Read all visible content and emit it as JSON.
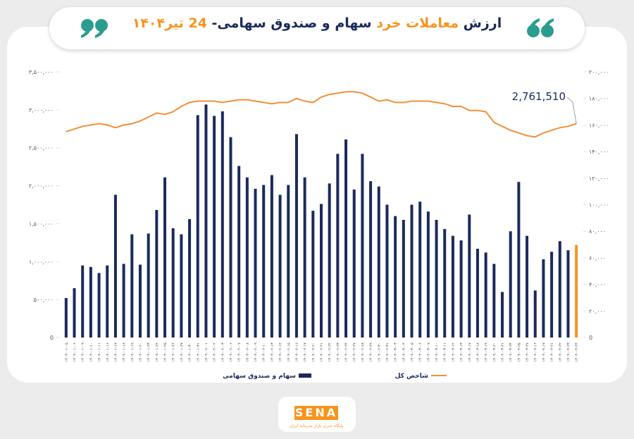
{
  "title_parts": [
    {
      "text": "ارزش ",
      "color": "#1b2a5c"
    },
    {
      "text": "معاملات خرد",
      "color": "#f7941d"
    },
    {
      "text": " سهام و صندوق سهامی- ",
      "color": "#1b2a5c"
    },
    {
      "text": "24 تیر۱۴۰۴",
      "color": "#f7941d"
    }
  ],
  "chart_data": {
    "type": "bar_line",
    "categories": [
      "۱۴۰۴-۰۱-۰۵",
      "۱۴۰۴-۰۱-۰۶",
      "۱۴۰۴-۰۱-۰۹",
      "۱۴۰۴-۰۱-۱۰",
      "۱۴۰۴-۰۱-۱۱",
      "۱۴۰۴-۰۱-۱۶",
      "۱۴۰۴-۰۱-۱۷",
      "۱۴۰۴-۰۱-۱۸",
      "۱۴۰۴-۰۱-۱۹",
      "۱۴۰۴-۰۱-۲۰",
      "۱۴۰۴-۰۱-۲۳",
      "۱۴۰۴-۰۱-۲۴",
      "۱۴۰۴-۰۱-۲۵",
      "۱۴۰۴-۰۱-۲۶",
      "۱۴۰۴-۰۱-۲۷",
      "۱۴۰۴-۰۱-۳۰",
      "۱۴۰۴-۰۱-۳۱",
      "۱۴۰۴-۰۲-۰۱",
      "۱۴۰۴-۰۲-۰۲",
      "۱۴۰۴-۰۲-۰۳",
      "۱۴۰۴-۰۲-۰۶",
      "۱۴۰۴-۰۲-۰۷",
      "۱۴۰۴-۰۲-۰۸",
      "۱۴۰۴-۰۲-۰۹",
      "۱۴۰۴-۰۲-۱۰",
      "۱۴۰۴-۰۲-۱۳",
      "۱۴۰۴-۰۲-۱۴",
      "۱۴۰۴-۰۲-۱۵",
      "۱۴۰۴-۰۲-۱۶",
      "۱۴۰۴-۰۲-۱۷",
      "۱۴۰۴-۰۲-۲۰",
      "۱۴۰۴-۰۲-۲۱",
      "۱۴۰۴-۰۲-۲۲",
      "۱۴۰۴-۰۲-۲۳",
      "۱۴۰۴-۰۲-۲۴",
      "۱۴۰۴-۰۲-۲۷",
      "۱۴۰۴-۰۲-۲۸",
      "۱۴۰۴-۰۲-۲۹",
      "۱۴۰۴-۰۲-۳۰",
      "۱۴۰۴-۰۲-۳۱",
      "۱۴۰۴-۰۳-۰۳",
      "۱۴۰۴-۰۳-۰۴",
      "۱۴۰۴-۰۳-۰۵",
      "۱۴۰۴-۰۳-۰۶",
      "۱۴۰۴-۰۳-۰۷",
      "۱۴۰۴-۰۳-۱۰",
      "۱۴۰۴-۰۳-۱۱",
      "۱۴۰۴-۰۳-۱۲",
      "۱۴۰۴-۰۳-۱۳",
      "۱۴۰۴-۰۳-۱۷",
      "۱۴۰۴-۰۳-۱۸",
      "۱۴۰۴-۰۳-۱۹",
      "۱۴۰۴-۰۳-۲۰",
      "۱۴۰۴-۰۳-۲۱",
      "۱۴۰۴-۰۳-۲۴",
      "۱۴۰۴-۰۳-۲۵",
      "۱۴۰۴-۰۳-۲۷",
      "۱۴۰۴-۰۴-۱۶",
      "۱۴۰۴-۰۴-۱۷",
      "۱۴۰۴-۰۴-۲۱",
      "۱۴۰۴-۰۴-۲۲",
      "۱۴۰۴-۰۴-۲۳",
      "۱۴۰۴-۰۴-۲۴"
    ],
    "series": [
      {
        "name": "سهام و صندوق سهامی",
        "color": "#1b2a5c",
        "last_color": "#f7941d",
        "values": [
          520000,
          650000,
          950000,
          930000,
          850000,
          950000,
          1880000,
          970000,
          1360000,
          960000,
          1370000,
          1680000,
          2110000,
          1440000,
          1360000,
          1560000,
          2930000,
          3070000,
          2920000,
          2980000,
          2640000,
          2260000,
          2110000,
          1960000,
          2010000,
          2140000,
          1880000,
          2010000,
          2680000,
          2110000,
          1670000,
          1760000,
          2030000,
          2420000,
          2610000,
          1950000,
          2420000,
          2060000,
          1990000,
          1750000,
          1600000,
          1550000,
          1750000,
          1790000,
          1660000,
          1550000,
          1430000,
          1340000,
          1280000,
          1620000,
          1170000,
          1120000,
          970000,
          600000,
          1400000,
          2050000,
          1340000,
          620000,
          1030000,
          1130000,
          1270000,
          1150000,
          1220000
        ]
      },
      {
        "name": "شاخص کل",
        "color": "#f0903a",
        "axis": "y2",
        "values": [
          155000,
          157000,
          159000,
          160000,
          161000,
          160000,
          158000,
          160000,
          161000,
          163000,
          166000,
          169000,
          168000,
          170000,
          174000,
          177000,
          178000,
          178000,
          178000,
          177000,
          178000,
          179000,
          179000,
          178000,
          177000,
          176000,
          177000,
          177000,
          180000,
          178000,
          177000,
          181000,
          183000,
          184000,
          185000,
          185000,
          184000,
          181000,
          178000,
          179000,
          177000,
          177000,
          178000,
          178000,
          178000,
          177000,
          176000,
          174000,
          174000,
          171000,
          171000,
          170000,
          162000,
          159000,
          156000,
          154000,
          152000,
          151000,
          154000,
          156000,
          158000,
          159000,
          161000
        ]
      }
    ],
    "ylim": [
      0,
      3500000
    ],
    "yticks": [
      0,
      {
        "value": 500000,
        "label": "۵۰۰,۰۰۰"
      },
      {
        "value": 1000000,
        "label": "۱,۰۰۰,۰۰۰"
      },
      {
        "value": 1500000,
        "label": "۱,۵۰۰,۰۰۰"
      },
      {
        "value": 2000000,
        "label": "۲,۰۰۰,۰۰۰"
      },
      {
        "value": 2500000,
        "label": "۲,۵۰۰,۰۰۰"
      },
      {
        "value": 3000000,
        "label": "۳,۰۰۰,۰۰۰"
      },
      {
        "value": 3500000,
        "label": "۳,۵۰۰,۰۰۰"
      }
    ],
    "y2lim": [
      0,
      200000
    ],
    "y2ticks": [
      0,
      {
        "value": 20000,
        "label": "۲۰,۰۰۰"
      },
      {
        "value": 40000,
        "label": "۴۰,۰۰۰"
      },
      {
        "value": 60000,
        "label": "۶۰,۰۰۰"
      },
      {
        "value": 80000,
        "label": "۸۰,۰۰۰"
      },
      {
        "value": 100000,
        "label": "۱۰۰,۰۰۰"
      },
      {
        "value": 120000,
        "label": "۱۲۰,۰۰۰"
      },
      {
        "value": 140000,
        "label": "۱۴۰,۰۰۰"
      },
      {
        "value": 160000,
        "label": "۱۶۰,۰۰۰"
      },
      {
        "value": 180000,
        "label": "۱۸۰,۰۰۰"
      },
      {
        "value": 200000,
        "label": "۲۰۰,۰۰۰"
      }
    ],
    "annotation": "2,761,510",
    "grid": false
  },
  "footer": {
    "logo": "SENA",
    "tagline": "پایگاه خبری بازار سرمایه ایران"
  }
}
